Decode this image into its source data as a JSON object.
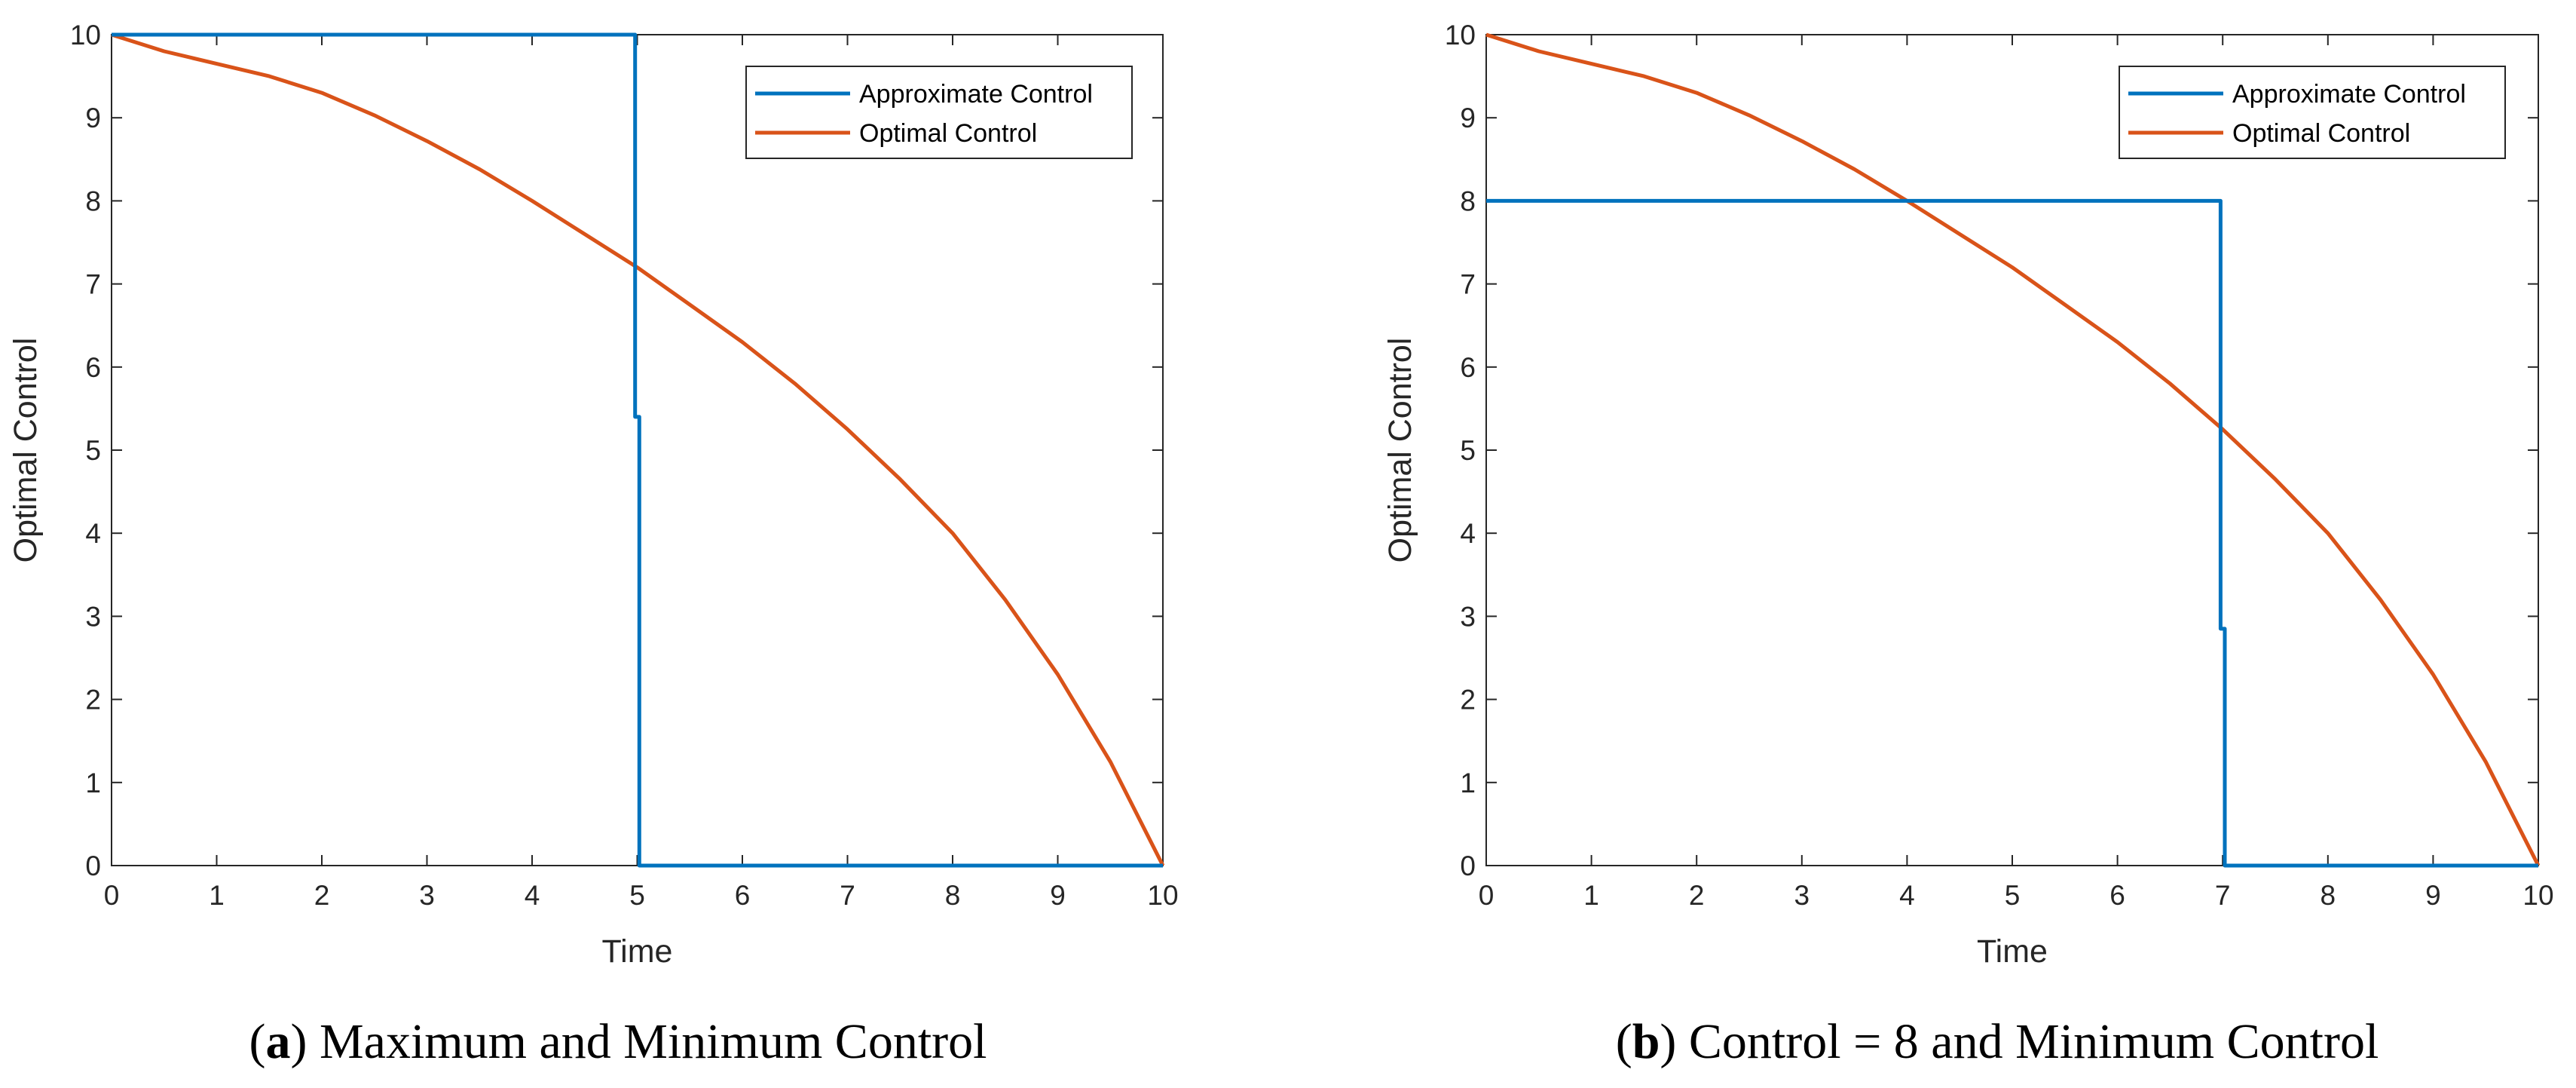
{
  "chart_data": [
    {
      "type": "line",
      "caption_id": "a",
      "caption_text": "Maximum and Minimum Control",
      "xlabel": "Time",
      "ylabel": "Optimal Control",
      "xlim": [
        0,
        10
      ],
      "ylim": [
        0,
        10
      ],
      "x_ticks": [
        0,
        1,
        2,
        3,
        4,
        5,
        6,
        7,
        8,
        9,
        10
      ],
      "y_ticks": [
        0,
        1,
        2,
        3,
        4,
        5,
        6,
        7,
        8,
        9,
        10
      ],
      "legend_position": "top-right",
      "series": [
        {
          "name": "Approximate Control",
          "color": "#0072BD",
          "x": [
            0,
            4.98,
            4.98,
            5.02,
            5.02,
            10
          ],
          "y": [
            10,
            10,
            5.4,
            5.4,
            0,
            0
          ]
        },
        {
          "name": "Optimal Control",
          "color": "#D95319",
          "x": [
            0,
            0.5,
            1,
            1.5,
            2,
            2.5,
            3,
            3.5,
            4,
            4.5,
            5,
            5.5,
            6,
            6.5,
            7,
            7.5,
            8,
            8.5,
            9,
            9.5,
            10
          ],
          "y": [
            10,
            9.8,
            9.65,
            9.5,
            9.3,
            9.03,
            8.72,
            8.38,
            8.0,
            7.6,
            7.2,
            6.75,
            6.3,
            5.8,
            5.25,
            4.65,
            4.0,
            3.2,
            2.3,
            1.25,
            0
          ]
        }
      ]
    },
    {
      "type": "line",
      "caption_id": "b",
      "caption_text": "Control = 8 and Minimum Control",
      "xlabel": "Time",
      "ylabel": "Optimal Control",
      "xlim": [
        0,
        10
      ],
      "ylim": [
        0,
        10
      ],
      "x_ticks": [
        0,
        1,
        2,
        3,
        4,
        5,
        6,
        7,
        8,
        9,
        10
      ],
      "y_ticks": [
        0,
        1,
        2,
        3,
        4,
        5,
        6,
        7,
        8,
        9,
        10
      ],
      "legend_position": "top-right",
      "series": [
        {
          "name": "Approximate Control",
          "color": "#0072BD",
          "x": [
            0,
            6.98,
            6.98,
            7.02,
            7.02,
            10
          ],
          "y": [
            8,
            8,
            2.85,
            2.85,
            0,
            0
          ]
        },
        {
          "name": "Optimal Control",
          "color": "#D95319",
          "x": [
            0,
            0.5,
            1,
            1.5,
            2,
            2.5,
            3,
            3.5,
            4,
            4.5,
            5,
            5.5,
            6,
            6.5,
            7,
            7.5,
            8,
            8.5,
            9,
            9.5,
            10
          ],
          "y": [
            10,
            9.8,
            9.65,
            9.5,
            9.3,
            9.03,
            8.72,
            8.38,
            8.0,
            7.6,
            7.2,
            6.75,
            6.3,
            5.8,
            5.25,
            4.65,
            4.0,
            3.2,
            2.3,
            1.25,
            0
          ]
        }
      ]
    }
  ]
}
